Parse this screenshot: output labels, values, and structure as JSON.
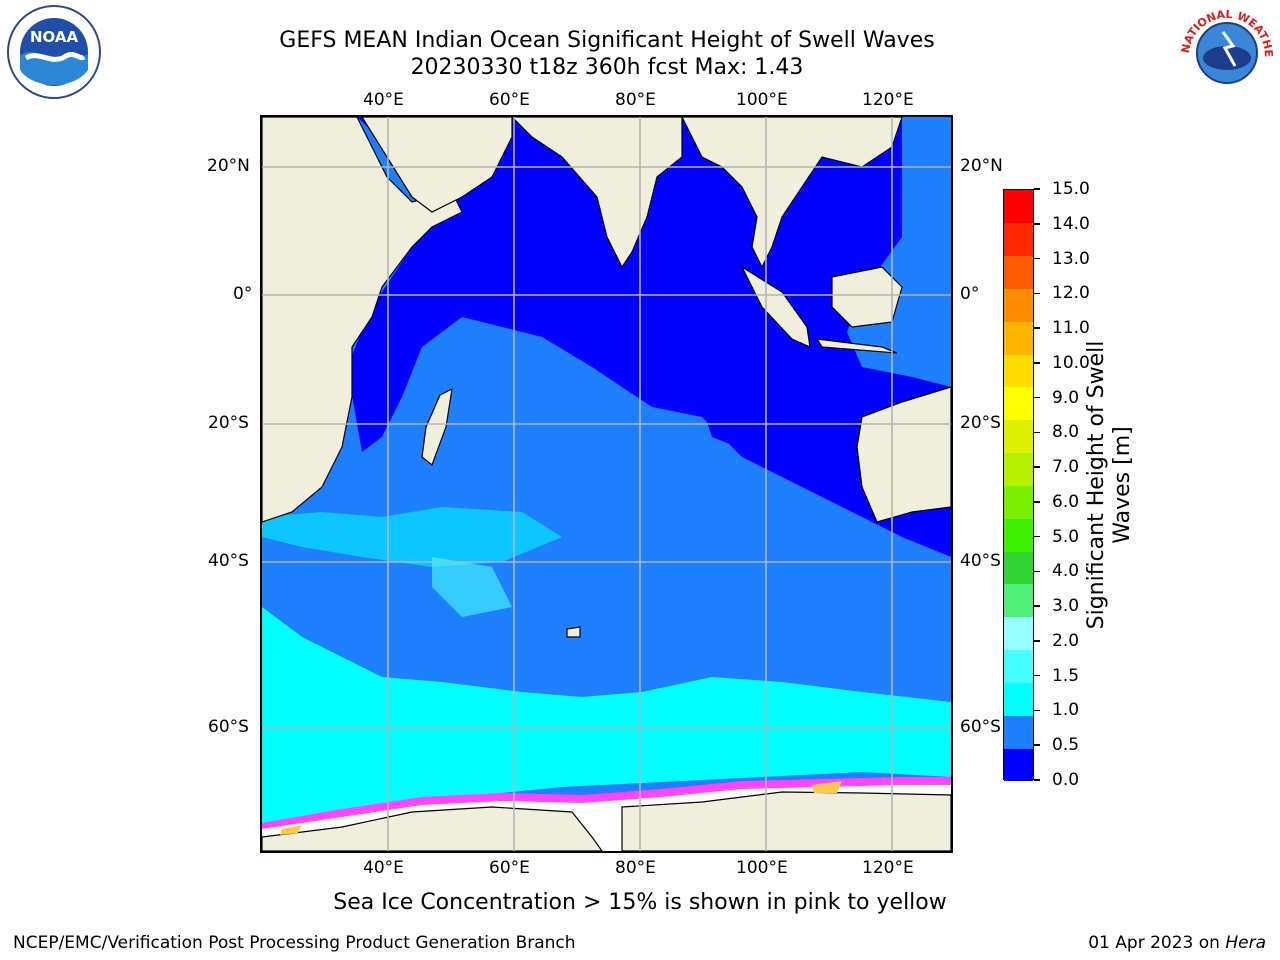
{
  "header": {
    "title_line1": "GEFS MEAN Indian Ocean Significant Height of Swell Waves",
    "title_line2": "20230330 t18z 360h fcst   Max: 1.43"
  },
  "logos": {
    "left": "NOAA",
    "right_text": "NATIONAL WEATHER SERVICE"
  },
  "map": {
    "lon_ticks_top": [
      "40°E",
      "60°E",
      "80°E",
      "100°E",
      "120°E"
    ],
    "lon_ticks_bottom": [
      "40°E",
      "60°E",
      "80°E",
      "100°E",
      "120°E"
    ],
    "lat_ticks_left": [
      "20°N",
      "0°",
      "20°S",
      "40°S",
      "60°S"
    ],
    "lat_ticks_right": [
      "20°N",
      "0°",
      "20°S",
      "40°S",
      "60°S"
    ],
    "colors": {
      "land": "#efefdc",
      "ocean_low": "#0000ff",
      "ocean_mid": "#1e7fff",
      "ocean_high": "#00ffff",
      "ice_pink": "#ff46ff",
      "ice_yellow": "#ffc846"
    }
  },
  "colorbar": {
    "label": "Significant Height of Swell Waves [m]",
    "label_line1": "Significant Height of Swell",
    "label_line2": "Waves [m]",
    "ticks": [
      "0.0",
      "0.5",
      "1.0",
      "1.5",
      "2.0",
      "3.0",
      "4.0",
      "5.0",
      "6.0",
      "7.0",
      "8.0",
      "9.0",
      "10.0",
      "11.0",
      "12.0",
      "13.0",
      "14.0",
      "15.0"
    ],
    "colors": [
      "#0000ff",
      "#1e7fff",
      "#00ffff",
      "#46ffff",
      "#96ffff",
      "#50f078",
      "#32d232",
      "#3cf000",
      "#78f000",
      "#b4f000",
      "#dcf000",
      "#ffff00",
      "#ffdc00",
      "#ffb400",
      "#ff8c00",
      "#ff5a00",
      "#ff2800",
      "#ff0000"
    ]
  },
  "notes": {
    "sea_ice": "Sea Ice Concentration > 15% is shown in pink to yellow"
  },
  "footer": {
    "left": "NCEP/EMC/Verification Post Processing Product Generation Branch",
    "right_date": "01 Apr 2023 on ",
    "right_host": "Hera"
  }
}
